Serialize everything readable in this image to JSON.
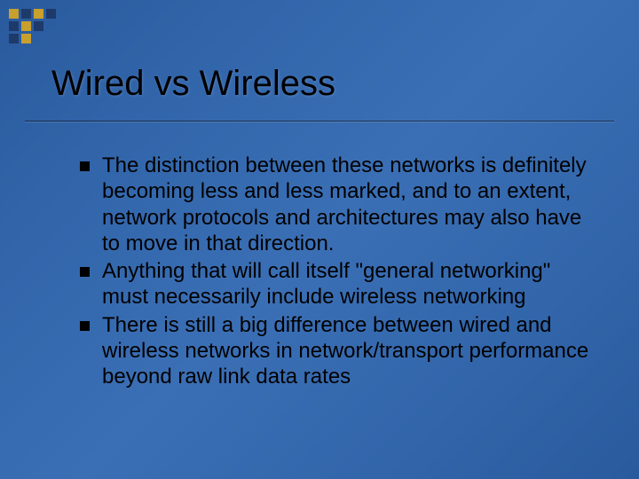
{
  "slide": {
    "title": "Wired vs Wireless",
    "bullets": [
      "The distinction between these networks is definitely becoming less and less marked, and to an extent, network protocols and architectures may also have to move in that direction.",
      "Anything that will call itself \"general networking\" must necessarily include wireless networking",
      "There is still a big difference between wired and wireless networks in network/transport performance beyond raw link data rates"
    ]
  },
  "style": {
    "background_gradient": [
      "#2a5a9e",
      "#3b6fb5"
    ],
    "title_color": "#000000",
    "title_fontsize": 40,
    "body_color": "#000000",
    "body_fontsize": 24,
    "bullet_marker": "square",
    "bullet_color": "#000000",
    "divider_color": "#000000",
    "corner_squares": {
      "rows": 3,
      "cols": 4,
      "size": 11,
      "gap": 3,
      "colors": {
        "gold": "#c8a02e",
        "navy": "#1d3a6b"
      },
      "pattern": [
        [
          "gold",
          "navy",
          "gold",
          "navy"
        ],
        [
          "navy",
          "gold",
          "navy",
          "none"
        ],
        [
          "navy",
          "gold",
          "none",
          "none"
        ]
      ]
    }
  }
}
